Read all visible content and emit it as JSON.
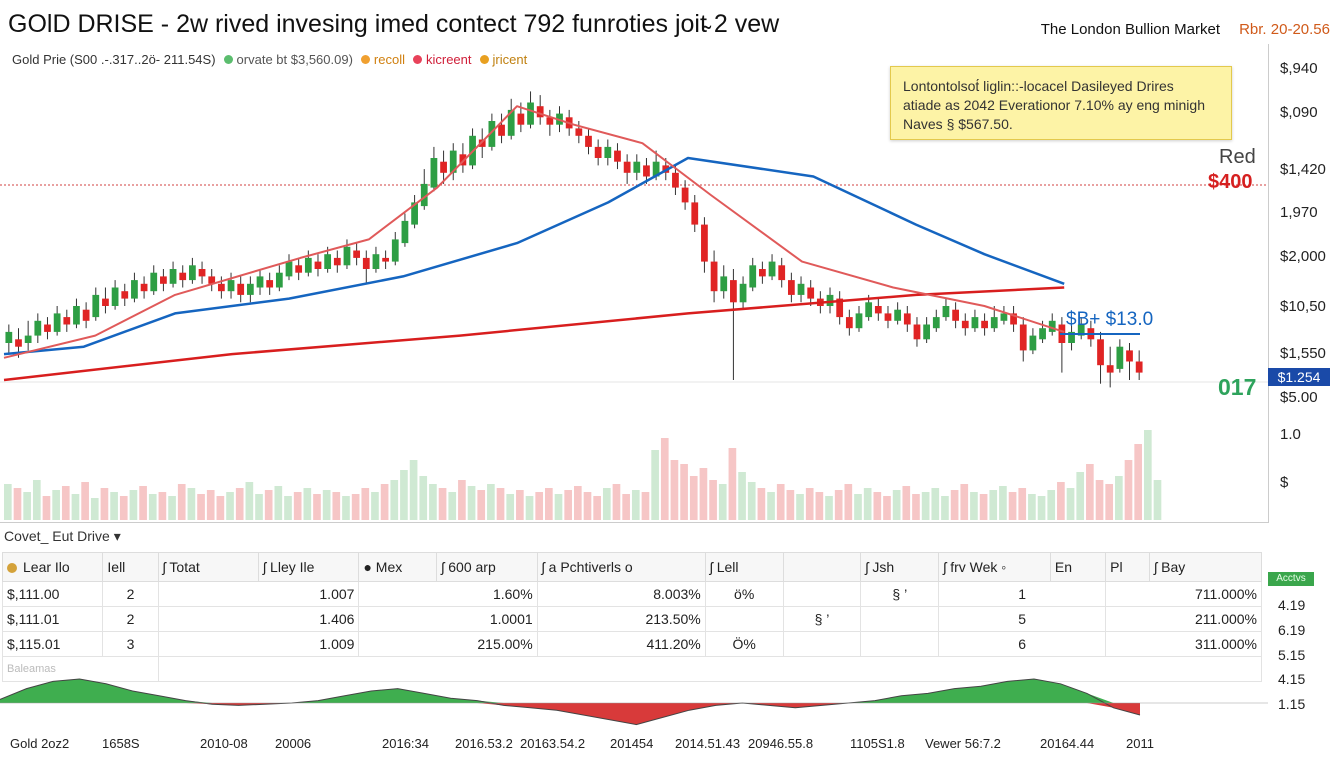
{
  "header": {
    "title": "GOlD DRISE - 2w rived invesing imed contect 792 funroties joit̴ 2 vew",
    "market": "The London Bullion Market",
    "market_code": "Rbr. 20-20.56"
  },
  "legend": {
    "main": "Gold Prie (S00 .-.317..2ö- 211.54S)",
    "items": [
      {
        "label": "orvate bt  $3,560.09)",
        "color": "#5bbd6e"
      },
      {
        "label": "recoll",
        "color": "#f0a030"
      },
      {
        "label": "kicreent",
        "color": "#e8425a"
      },
      {
        "label": "jricent",
        "color": "#e8a020"
      }
    ]
  },
  "tooltip": {
    "line1": "Lontontolsot́ liglin::-locacel Dasileyed Drires",
    "line2": "atiade as 2042 Everationor 7.10% ay eng minigh",
    "line3": "Naves § $567.50."
  },
  "annotations": {
    "red_word": "Red",
    "red_price": "$400",
    "blue_label": "$B+ $13.0",
    "green_label": "017",
    "price_tag": "$1.254"
  },
  "colors": {
    "up": "#2e9e44",
    "down": "#e02424",
    "blue_ma": "#1565c0",
    "red_ma": "#e05a5a",
    "trend": "#d81e1e",
    "vol_up": "#cfe9d3",
    "vol_down": "#f6c6c6"
  },
  "chart_data": {
    "type": "candlestick",
    "y_axis_ticks": [
      "$,940",
      "$,090",
      "$1,420",
      "1,970",
      "$2,000",
      "$10,50",
      "$1,550",
      "$5.00",
      "1.0",
      "$"
    ],
    "candles": [
      [
        0.3,
        0.33,
        0.35,
        0.27
      ],
      [
        0.31,
        0.29,
        0.34,
        0.26
      ],
      [
        0.3,
        0.32,
        0.36,
        0.28
      ],
      [
        0.32,
        0.36,
        0.38,
        0.3
      ],
      [
        0.35,
        0.33,
        0.37,
        0.31
      ],
      [
        0.33,
        0.38,
        0.4,
        0.32
      ],
      [
        0.37,
        0.35,
        0.39,
        0.33
      ],
      [
        0.35,
        0.4,
        0.42,
        0.34
      ],
      [
        0.39,
        0.36,
        0.41,
        0.34
      ],
      [
        0.37,
        0.43,
        0.45,
        0.36
      ],
      [
        0.42,
        0.4,
        0.45,
        0.38
      ],
      [
        0.4,
        0.45,
        0.47,
        0.39
      ],
      [
        0.44,
        0.42,
        0.46,
        0.4
      ],
      [
        0.42,
        0.47,
        0.49,
        0.41
      ],
      [
        0.46,
        0.44,
        0.48,
        0.42
      ],
      [
        0.44,
        0.49,
        0.51,
        0.43
      ],
      [
        0.48,
        0.46,
        0.5,
        0.44
      ],
      [
        0.46,
        0.5,
        0.52,
        0.45
      ],
      [
        0.49,
        0.47,
        0.51,
        0.45
      ],
      [
        0.47,
        0.51,
        0.53,
        0.46
      ],
      [
        0.5,
        0.48,
        0.52,
        0.46
      ],
      [
        0.48,
        0.46,
        0.5,
        0.44
      ],
      [
        0.46,
        0.44,
        0.48,
        0.42
      ],
      [
        0.44,
        0.47,
        0.49,
        0.42
      ],
      [
        0.46,
        0.43,
        0.48,
        0.41
      ],
      [
        0.43,
        0.46,
        0.48,
        0.41
      ],
      [
        0.45,
        0.48,
        0.5,
        0.43
      ],
      [
        0.47,
        0.45,
        0.49,
        0.43
      ],
      [
        0.45,
        0.49,
        0.51,
        0.44
      ],
      [
        0.48,
        0.52,
        0.54,
        0.47
      ],
      [
        0.51,
        0.49,
        0.53,
        0.47
      ],
      [
        0.49,
        0.53,
        0.55,
        0.48
      ],
      [
        0.52,
        0.5,
        0.54,
        0.48
      ],
      [
        0.5,
        0.54,
        0.56,
        0.49
      ],
      [
        0.53,
        0.51,
        0.55,
        0.49
      ],
      [
        0.51,
        0.56,
        0.58,
        0.5
      ],
      [
        0.55,
        0.53,
        0.57,
        0.51
      ],
      [
        0.53,
        0.5,
        0.55,
        0.46
      ],
      [
        0.5,
        0.54,
        0.56,
        0.49
      ],
      [
        0.53,
        0.52,
        0.55,
        0.5
      ],
      [
        0.52,
        0.58,
        0.6,
        0.51
      ],
      [
        0.57,
        0.63,
        0.65,
        0.56
      ],
      [
        0.62,
        0.68,
        0.7,
        0.61
      ],
      [
        0.67,
        0.73,
        0.77,
        0.66
      ],
      [
        0.72,
        0.8,
        0.83,
        0.71
      ],
      [
        0.79,
        0.76,
        0.82,
        0.73
      ],
      [
        0.76,
        0.82,
        0.84,
        0.74
      ],
      [
        0.81,
        0.78,
        0.84,
        0.76
      ],
      [
        0.78,
        0.86,
        0.88,
        0.77
      ],
      [
        0.85,
        0.83,
        0.88,
        0.8
      ],
      [
        0.83,
        0.9,
        0.92,
        0.82
      ],
      [
        0.89,
        0.86,
        0.92,
        0.84
      ],
      [
        0.86,
        0.93,
        0.96,
        0.85
      ],
      [
        0.92,
        0.89,
        0.95,
        0.87
      ],
      [
        0.89,
        0.95,
        0.98,
        0.88
      ],
      [
        0.94,
        0.91,
        0.97,
        0.89
      ],
      [
        0.91,
        0.89,
        0.93,
        0.86
      ],
      [
        0.89,
        0.92,
        0.94,
        0.87
      ],
      [
        0.91,
        0.88,
        0.93,
        0.86
      ],
      [
        0.88,
        0.86,
        0.9,
        0.84
      ],
      [
        0.86,
        0.83,
        0.88,
        0.81
      ],
      [
        0.83,
        0.8,
        0.85,
        0.78
      ],
      [
        0.8,
        0.83,
        0.85,
        0.78
      ],
      [
        0.82,
        0.79,
        0.84,
        0.77
      ],
      [
        0.79,
        0.76,
        0.81,
        0.73
      ],
      [
        0.76,
        0.79,
        0.81,
        0.74
      ],
      [
        0.78,
        0.75,
        0.8,
        0.73
      ],
      [
        0.75,
        0.79,
        0.82,
        0.74
      ],
      [
        0.78,
        0.76,
        0.8,
        0.74
      ],
      [
        0.76,
        0.72,
        0.78,
        0.7
      ],
      [
        0.72,
        0.68,
        0.74,
        0.66
      ],
      [
        0.68,
        0.62,
        0.7,
        0.6
      ],
      [
        0.62,
        0.52,
        0.64,
        0.49
      ],
      [
        0.52,
        0.44,
        0.55,
        0.41
      ],
      [
        0.44,
        0.48,
        0.51,
        0.42
      ],
      [
        0.47,
        0.41,
        0.5,
        0.2
      ],
      [
        0.41,
        0.46,
        0.48,
        0.39
      ],
      [
        0.45,
        0.51,
        0.53,
        0.44
      ],
      [
        0.5,
        0.48,
        0.52,
        0.46
      ],
      [
        0.48,
        0.52,
        0.54,
        0.47
      ],
      [
        0.51,
        0.47,
        0.53,
        0.45
      ],
      [
        0.47,
        0.43,
        0.49,
        0.41
      ],
      [
        0.43,
        0.46,
        0.48,
        0.41
      ],
      [
        0.45,
        0.42,
        0.47,
        0.4
      ],
      [
        0.42,
        0.4,
        0.44,
        0.38
      ],
      [
        0.4,
        0.43,
        0.45,
        0.38
      ],
      [
        0.42,
        0.37,
        0.44,
        0.35
      ],
      [
        0.37,
        0.34,
        0.39,
        0.32
      ],
      [
        0.34,
        0.38,
        0.4,
        0.33
      ],
      [
        0.37,
        0.41,
        0.43,
        0.36
      ],
      [
        0.4,
        0.38,
        0.42,
        0.36
      ],
      [
        0.38,
        0.36,
        0.4,
        0.34
      ],
      [
        0.36,
        0.39,
        0.41,
        0.35
      ],
      [
        0.38,
        0.35,
        0.4,
        0.33
      ],
      [
        0.35,
        0.31,
        0.37,
        0.29
      ],
      [
        0.31,
        0.35,
        0.37,
        0.3
      ],
      [
        0.34,
        0.37,
        0.39,
        0.33
      ],
      [
        0.37,
        0.4,
        0.42,
        0.36
      ],
      [
        0.39,
        0.36,
        0.41,
        0.34
      ],
      [
        0.36,
        0.34,
        0.38,
        0.32
      ],
      [
        0.34,
        0.37,
        0.39,
        0.33
      ],
      [
        0.36,
        0.34,
        0.38,
        0.32
      ],
      [
        0.34,
        0.37,
        0.4,
        0.33
      ],
      [
        0.36,
        0.38,
        0.4,
        0.35
      ],
      [
        0.38,
        0.35,
        0.4,
        0.33
      ],
      [
        0.35,
        0.28,
        0.37,
        0.25
      ],
      [
        0.28,
        0.32,
        0.34,
        0.27
      ],
      [
        0.31,
        0.34,
        0.36,
        0.3
      ],
      [
        0.33,
        0.36,
        0.38,
        0.32
      ],
      [
        0.35,
        0.3,
        0.37,
        0.22
      ],
      [
        0.3,
        0.33,
        0.35,
        0.28
      ],
      [
        0.32,
        0.35,
        0.37,
        0.31
      ],
      [
        0.34,
        0.31,
        0.36,
        0.29
      ],
      [
        0.31,
        0.24,
        0.33,
        0.19
      ],
      [
        0.24,
        0.22,
        0.29,
        0.18
      ],
      [
        0.23,
        0.29,
        0.31,
        0.22
      ],
      [
        0.28,
        0.25,
        0.3,
        0.2
      ],
      [
        0.25,
        0.22,
        0.28,
        0.2
      ]
    ],
    "volume": [
      0.18,
      0.16,
      0.14,
      0.2,
      0.12,
      0.15,
      0.17,
      0.13,
      0.19,
      0.11,
      0.16,
      0.14,
      0.12,
      0.15,
      0.17,
      0.13,
      0.14,
      0.12,
      0.18,
      0.16,
      0.13,
      0.15,
      0.12,
      0.14,
      0.16,
      0.19,
      0.13,
      0.15,
      0.17,
      0.12,
      0.14,
      0.16,
      0.13,
      0.15,
      0.14,
      0.12,
      0.13,
      0.16,
      0.14,
      0.18,
      0.2,
      0.25,
      0.3,
      0.22,
      0.18,
      0.16,
      0.14,
      0.2,
      0.17,
      0.15,
      0.18,
      0.16,
      0.13,
      0.15,
      0.12,
      0.14,
      0.16,
      0.13,
      0.15,
      0.17,
      0.14,
      0.12,
      0.16,
      0.18,
      0.13,
      0.15,
      0.14,
      0.35,
      0.41,
      0.3,
      0.28,
      0.22,
      0.26,
      0.2,
      0.18,
      0.36,
      0.24,
      0.19,
      0.16,
      0.14,
      0.18,
      0.15,
      0.13,
      0.16,
      0.14,
      0.12,
      0.15,
      0.18,
      0.13,
      0.16,
      0.14,
      0.12,
      0.15,
      0.17,
      0.13,
      0.14,
      0.16,
      0.12,
      0.15,
      0.18,
      0.14,
      0.13,
      0.15,
      0.17,
      0.14,
      0.16,
      0.13,
      0.12,
      0.15,
      0.19,
      0.16,
      0.24,
      0.28,
      0.2,
      0.18,
      0.22,
      0.3,
      0.38,
      0.45,
      0.2
    ],
    "blue_ma": [
      [
        0,
        0.27
      ],
      [
        0.07,
        0.29
      ],
      [
        0.15,
        0.38
      ],
      [
        0.25,
        0.42
      ],
      [
        0.35,
        0.48
      ],
      [
        0.45,
        0.57
      ],
      [
        0.53,
        0.68
      ],
      [
        0.6,
        0.8
      ],
      [
        0.71,
        0.75
      ],
      [
        0.8,
        0.62
      ],
      [
        0.86,
        0.54
      ],
      [
        0.93,
        0.46
      ]
    ],
    "red_ma": [
      [
        0,
        0.26
      ],
      [
        0.08,
        0.32
      ],
      [
        0.15,
        0.43
      ],
      [
        0.26,
        0.53
      ],
      [
        0.32,
        0.58
      ],
      [
        0.38,
        0.72
      ],
      [
        0.45,
        0.94
      ],
      [
        0.5,
        0.89
      ],
      [
        0.56,
        0.84
      ],
      [
        0.62,
        0.7
      ],
      [
        0.7,
        0.52
      ],
      [
        0.78,
        0.45
      ],
      [
        0.86,
        0.4
      ],
      [
        0.93,
        0.33
      ]
    ],
    "trend": [
      [
        0,
        0.2
      ],
      [
        0.2,
        0.27
      ],
      [
        0.4,
        0.32
      ],
      [
        0.6,
        0.38
      ],
      [
        0.8,
        0.43
      ],
      [
        0.93,
        0.45
      ]
    ],
    "oscillator": [
      0.15,
      0.6,
      0.9,
      1.0,
      0.8,
      0.5,
      0.3,
      0.1,
      -0.05,
      -0.1,
      -0.05,
      0.0,
      0.1,
      0.3,
      0.5,
      0.6,
      0.4,
      0.2,
      0.1,
      -0.1,
      -0.2,
      -0.3,
      -0.5,
      -0.7,
      -0.9,
      -0.6,
      -0.3,
      -0.1,
      0.0,
      -0.1,
      -0.2,
      -0.1,
      0.0,
      0.1,
      0.3,
      0.4,
      0.6,
      0.7,
      0.9,
      1.0,
      0.8,
      0.4,
      -0.2,
      -0.5
    ]
  },
  "table": {
    "panel_title": "Covet_ Eut Drive ▾",
    "columns": [
      "Lear Ilo",
      "Iell",
      "ʃ Totat",
      "ʃ Lley Ile",
      "● Mex",
      "ʃ 600 arp",
      "ʃ a Pchtiverls o",
      "ʃ Lell",
      "",
      "ʃ Jsh",
      "ʃ frv Wek ◦",
      "En",
      "Pl",
      "ʃ Bay"
    ],
    "rows": [
      [
        "$,111.00",
        "2",
        "1.007",
        "",
        "1.60%",
        "8.003%",
        "ö%",
        "",
        "§ ’",
        "1",
        "711.000%"
      ],
      [
        "$,111.01",
        "2",
        "1.406",
        "",
        "1.0001",
        "213.50%",
        "",
        "§ ’",
        "",
        "5",
        "211.000%"
      ],
      [
        "$,115.01",
        "3",
        "1.009",
        "215.00%",
        "",
        "411.20%",
        "",
        "Ö%",
        "",
        "6",
        "311.000%"
      ]
    ],
    "sub_label": "Baleamas"
  },
  "right_scale": {
    "tag": "Acctvs",
    "values": [
      "4.19",
      "6.19",
      "5.15",
      "4.15",
      "1.15"
    ]
  },
  "footer": {
    "labels": [
      "Gold 2oz2",
      "1658S",
      "2010-08",
      "20006",
      "2016:34",
      "2016.53.2",
      "20163.54.2",
      "201454",
      "2014.51.43",
      "20946.55.8",
      "1105S1.8",
      "Vewer 56:7.2",
      "20164.44",
      "2011"
    ]
  }
}
